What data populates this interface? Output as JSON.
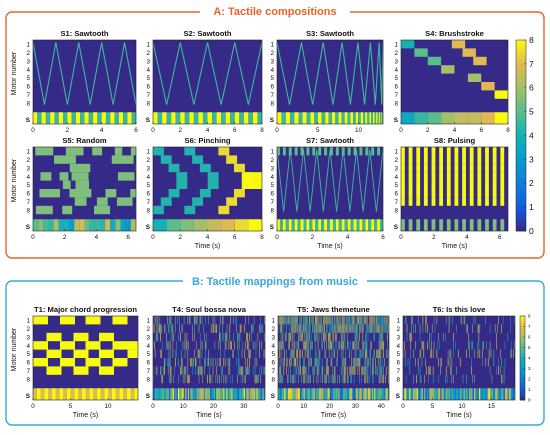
{
  "section_a": {
    "title": "A: Tactile compositions",
    "color": "#e8632a"
  },
  "section_b": {
    "title": "B: Tactile mappings from music",
    "color": "#39a7dc"
  },
  "colorbar_a": {
    "ticks": [
      "0",
      "1",
      "2",
      "3",
      "4",
      "5",
      "6",
      "7",
      "8"
    ]
  },
  "colorbar_b": {
    "ticks": [
      "0",
      "1",
      "2",
      "3",
      "4",
      "5",
      "6",
      "7",
      "8"
    ]
  },
  "chart_data": [
    {
      "id": "S1",
      "type": "heatmap",
      "title": "S1: Sawtooth",
      "ylabel": "Motor number",
      "xlabel": "",
      "x_ticks": [
        "0",
        "2",
        "4",
        "6"
      ],
      "xlim": [
        0,
        6
      ],
      "y_labels": [
        "1",
        "2",
        "3",
        "4",
        "5",
        "6",
        "7",
        "8",
        "S"
      ],
      "pattern": "sawtooth",
      "cycles": 9
    },
    {
      "id": "S2",
      "type": "heatmap",
      "title": "S2: Sawtooth",
      "ylabel": "",
      "xlabel": "",
      "x_ticks": [
        "0",
        "2",
        "4",
        "6",
        "8"
      ],
      "xlim": [
        0,
        8
      ],
      "y_labels": [
        "1",
        "2",
        "3",
        "4",
        "5",
        "6",
        "7",
        "8",
        "S"
      ],
      "pattern": "sawtooth",
      "cycles": 8
    },
    {
      "id": "S3",
      "type": "heatmap",
      "title": "S3: Sawtooth",
      "ylabel": "",
      "xlabel": "",
      "x_ticks": [
        "0",
        "5",
        "10"
      ],
      "xlim": [
        0,
        13
      ],
      "y_labels": [
        "1",
        "2",
        "3",
        "4",
        "5",
        "6",
        "7",
        "8",
        "S"
      ],
      "pattern": "sawtooth-accel",
      "cycles": 14
    },
    {
      "id": "S4",
      "type": "heatmap",
      "title": "S4: Brushstroke",
      "ylabel": "",
      "xlabel": "",
      "x_ticks": [
        "0",
        "2",
        "4",
        "6",
        "8"
      ],
      "xlim": [
        0,
        8
      ],
      "y_labels": [
        "1",
        "2",
        "3",
        "4",
        "5",
        "6",
        "7",
        "8",
        "S"
      ],
      "pattern": "brushstroke",
      "strokes": [
        {
          "motor": 1,
          "t0": 0.0,
          "t1": 1.0,
          "v": 4
        },
        {
          "motor": 2,
          "t0": 1.0,
          "t1": 2.0,
          "v": 5
        },
        {
          "motor": 3,
          "t0": 2.0,
          "t1": 3.0,
          "v": 5
        },
        {
          "motor": 4,
          "t0": 3.0,
          "t1": 4.0,
          "v": 6
        },
        {
          "motor": 1,
          "t0": 3.8,
          "t1": 4.8,
          "v": 7
        },
        {
          "motor": 2,
          "t0": 4.6,
          "t1": 5.6,
          "v": 7
        },
        {
          "motor": 5,
          "t0": 5.0,
          "t1": 6.0,
          "v": 6
        },
        {
          "motor": 6,
          "t0": 6.0,
          "t1": 7.0,
          "v": 7
        },
        {
          "motor": 3,
          "t0": 5.4,
          "t1": 6.4,
          "v": 7
        },
        {
          "motor": 7,
          "t0": 7.0,
          "t1": 8.0,
          "v": 8
        }
      ]
    },
    {
      "id": "S5",
      "type": "heatmap",
      "title": "S5: Random",
      "ylabel": "Motor number",
      "xlabel": "",
      "x_ticks": [
        "0",
        "2",
        "4",
        "6"
      ],
      "xlim": [
        0,
        6.5
      ],
      "y_labels": [
        "1",
        "2",
        "3",
        "4",
        "5",
        "6",
        "7",
        "8",
        "S"
      ],
      "pattern": "random"
    },
    {
      "id": "S6",
      "type": "heatmap",
      "title": "S6: Pinching",
      "ylabel": "",
      "xlabel": "Time (s)",
      "x_ticks": [
        "0",
        "2",
        "4",
        "6",
        "8"
      ],
      "xlim": [
        0,
        8
      ],
      "y_labels": [
        "1",
        "2",
        "3",
        "4",
        "5",
        "6",
        "7",
        "8",
        "S"
      ],
      "pattern": "pinching"
    },
    {
      "id": "S7",
      "type": "heatmap",
      "title": "S7: Sawtooth",
      "ylabel": "",
      "xlabel": "Time (s)",
      "x_ticks": [
        "0",
        "2",
        "4",
        "6"
      ],
      "xlim": [
        0,
        6
      ],
      "y_labels": [
        "1",
        "2",
        "3",
        "4",
        "5",
        "6",
        "7",
        "8",
        "S"
      ],
      "pattern": "sawtooth-dense",
      "cycles": 16
    },
    {
      "id": "S8",
      "type": "heatmap",
      "title": "S8: Pulsing",
      "ylabel": "",
      "xlabel": "Time (s)",
      "x_ticks": [
        "0",
        "2",
        "4",
        "6"
      ],
      "xlim": [
        0,
        6.5
      ],
      "y_labels": [
        "1",
        "2",
        "3",
        "4",
        "5",
        "6",
        "7",
        "8",
        "S"
      ],
      "pattern": "pulsing",
      "pulses": 14
    },
    {
      "id": "T1",
      "type": "heatmap",
      "title": "T1: Major chord progression",
      "ylabel": "Motor number",
      "xlabel": "Time (s)",
      "x_ticks": [
        "0",
        "5",
        "10"
      ],
      "xlim": [
        0,
        14
      ],
      "y_labels": [
        "1",
        "2",
        "3",
        "4",
        "5",
        "6",
        "7",
        "8",
        "S"
      ],
      "pattern": "chords"
    },
    {
      "id": "T4",
      "type": "heatmap",
      "title": "T4: Soul bossa nova",
      "ylabel": "",
      "xlabel": "Time (s)",
      "x_ticks": [
        "0",
        "10",
        "20",
        "30"
      ],
      "xlim": [
        0,
        37
      ],
      "y_labels": [
        "1",
        "2",
        "3",
        "4",
        "5",
        "6",
        "7",
        "8",
        "S"
      ],
      "pattern": "music",
      "seed": 11
    },
    {
      "id": "T5",
      "type": "heatmap",
      "title": "T5: Jaws themetune",
      "ylabel": "",
      "xlabel": "Time (s)",
      "x_ticks": [
        "0",
        "10",
        "20",
        "30",
        "40"
      ],
      "xlim": [
        0,
        43
      ],
      "y_labels": [
        "1",
        "2",
        "3",
        "4",
        "5",
        "6",
        "7",
        "8",
        "S"
      ],
      "pattern": "music-dense",
      "seed": 23
    },
    {
      "id": "T6",
      "type": "heatmap",
      "title": "T6: Is this love",
      "ylabel": "",
      "xlabel": "Time (s)",
      "x_ticks": [
        "0",
        "5",
        "10",
        "15"
      ],
      "xlim": [
        0,
        19
      ],
      "y_labels": [
        "1",
        "2",
        "3",
        "4",
        "5",
        "6",
        "7",
        "8",
        "S"
      ],
      "pattern": "music-sparse",
      "seed": 37
    }
  ]
}
